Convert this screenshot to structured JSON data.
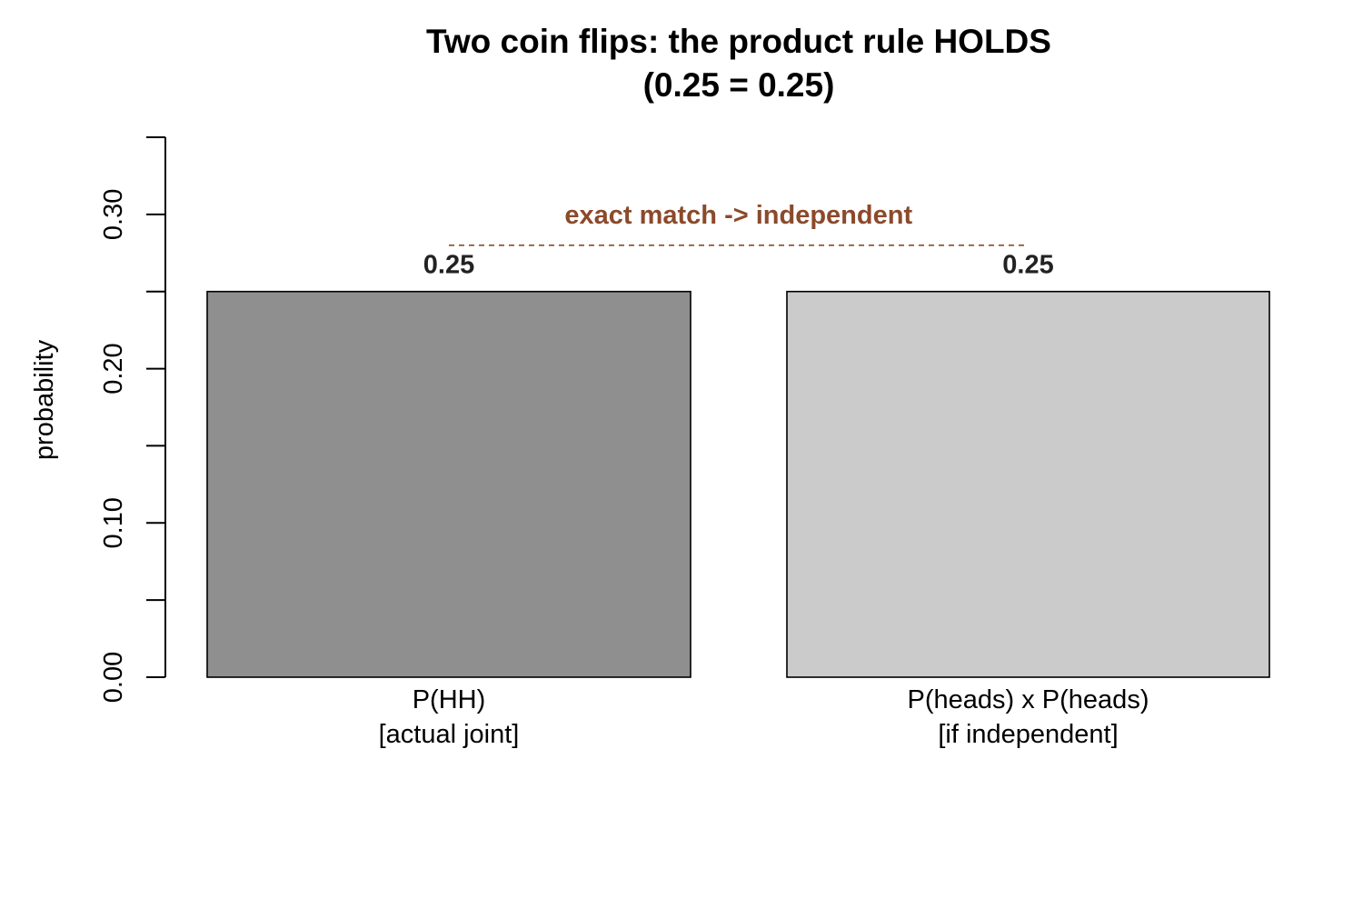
{
  "chart_data": {
    "type": "bar",
    "title": [
      "Two coin flips: the product rule HOLDS",
      "(0.25 = 0.25)"
    ],
    "ylabel": "probability",
    "xlabel": "",
    "ylim": [
      0,
      0.35
    ],
    "yticks": [
      0.0,
      0.05,
      0.1,
      0.15,
      0.2,
      0.25,
      0.3,
      0.35
    ],
    "ytick_labels": [
      "0.00",
      "",
      "0.10",
      "",
      "0.20",
      "",
      "0.30",
      ""
    ],
    "categories": [
      [
        "P(HH)",
        "[actual joint]"
      ],
      [
        "P(heads) x P(heads)",
        "[if independent]"
      ]
    ],
    "values": [
      0.25,
      0.25
    ],
    "value_labels": [
      "0.25",
      "0.25"
    ],
    "bar_colors": [
      "#8f8f8f",
      "#cbcbcb"
    ],
    "annotation": {
      "text": "exact match -> independent",
      "color": "#8b4a2b",
      "line_y": 0.28
    },
    "grid": false,
    "legend": "none"
  }
}
